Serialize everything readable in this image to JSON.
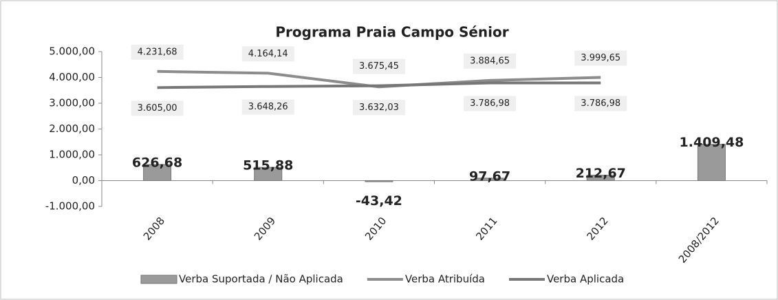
{
  "chart_data": {
    "type": "bar_line",
    "title": "Programa Praia Campo Sénior",
    "categories": [
      "2008",
      "2009",
      "2010",
      "2011",
      "2012",
      "2008/2012"
    ],
    "series": [
      {
        "name": "Verba Suportada / Não Aplicada",
        "type": "bar",
        "color": "#9a9a9a",
        "values": [
          626.68,
          515.88,
          -43.42,
          97.67,
          212.67,
          1409.48
        ],
        "value_labels": [
          "626,68",
          "515,88",
          "-43,42",
          "97,67",
          "212,67",
          "1.409,48"
        ]
      },
      {
        "name": "Verba Atribuída",
        "type": "line",
        "color": "#8c8c8c",
        "values": [
          4231.68,
          4164.14,
          3632.03,
          3884.65,
          3999.65,
          null
        ],
        "value_labels": [
          "4.231,68",
          "4.164,14",
          "3.632,03",
          "3.884,65",
          "3.999,65",
          null
        ]
      },
      {
        "name": "Verba Aplicada",
        "type": "line",
        "color": "#777777",
        "values": [
          3605.0,
          3648.26,
          3675.45,
          3786.98,
          3786.98,
          null
        ],
        "value_labels": [
          "3.605,00",
          "3.648,26",
          "3.675,45",
          "3.786,98",
          "3.786,98",
          null
        ]
      }
    ],
    "ylim": [
      -1000,
      5000
    ],
    "yticks": [
      {
        "value": -1000,
        "label": "-1.000,00"
      },
      {
        "value": 0,
        "label": "0,00"
      },
      {
        "value": 1000,
        "label": "1.000,00"
      },
      {
        "value": 2000,
        "label": "2.000,00"
      },
      {
        "value": 3000,
        "label": "3.000,00"
      },
      {
        "value": 4000,
        "label": "4.000,00"
      },
      {
        "value": 5000,
        "label": "5.000,00"
      }
    ],
    "legend": "bottom"
  }
}
